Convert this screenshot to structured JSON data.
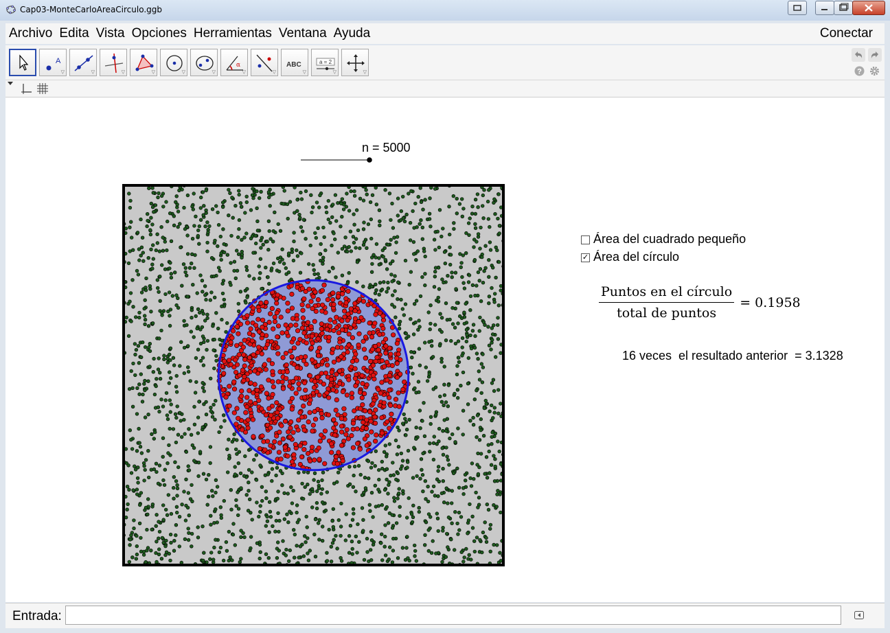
{
  "window": {
    "title": "Cap03-MonteCarloAreaCirculo.ggb"
  },
  "menu": {
    "items": [
      "Archivo",
      "Edita",
      "Vista",
      "Opciones",
      "Herramientas",
      "Ventana",
      "Ayuda"
    ],
    "connect": "Conectar"
  },
  "toolbar": {
    "tools": [
      {
        "name": "move-tool-icon",
        "active": true
      },
      {
        "name": "point-tool-icon"
      },
      {
        "name": "line-tool-icon"
      },
      {
        "name": "perpendicular-tool-icon"
      },
      {
        "name": "polygon-tool-icon"
      },
      {
        "name": "circle-tool-icon"
      },
      {
        "name": "conic-tool-icon"
      },
      {
        "name": "angle-tool-icon"
      },
      {
        "name": "reflect-tool-icon"
      },
      {
        "name": "text-tool-icon",
        "label": "ABC"
      },
      {
        "name": "slider-tool-icon",
        "label": "a = 2"
      },
      {
        "name": "move-graphics-tool-icon"
      }
    ]
  },
  "graphics": {
    "slider": {
      "label": "n = 5000",
      "value": 5000
    },
    "checkboxes": [
      {
        "label": "Área del cuadrado pequeño",
        "checked": false
      },
      {
        "label": "Área del círculo",
        "checked": true
      }
    ],
    "formula": {
      "numerator": "Puntos en el círculo",
      "denominator": "total de puntos",
      "value": "= 0.1958"
    },
    "result": "16 veces  el resultado anterior  = 3.1328",
    "simulation": {
      "square_fill": "#c9c9c9",
      "circle_fill": "#8f9ad6",
      "circle_stroke": "#1a1ae0",
      "inside_point_color": "#e01111",
      "outside_point_color": "#1e5a1e",
      "seed": 7
    }
  },
  "input_bar": {
    "label": "Entrada:",
    "value": ""
  }
}
